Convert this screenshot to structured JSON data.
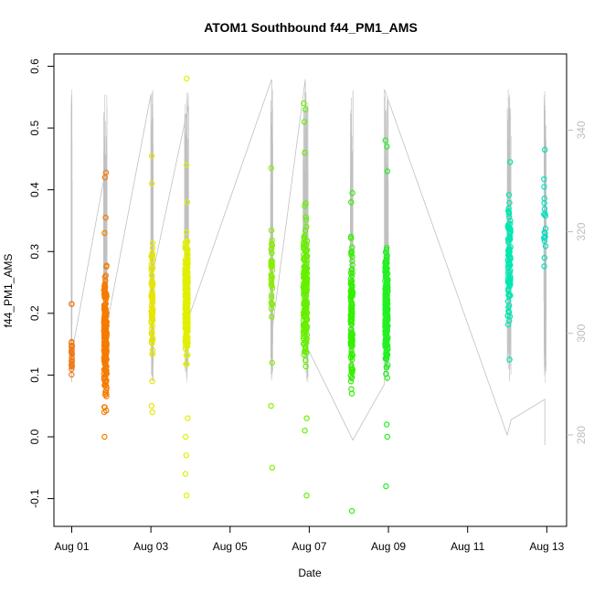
{
  "chart_data": {
    "type": "scatter",
    "title": "ATOM1 Southbound f44_PM1_AMS",
    "xlabel": "Date",
    "ylabel": "f44_PM1_AMS",
    "x_ticks": [
      {
        "day": 1,
        "label": "Aug 01"
      },
      {
        "day": 3,
        "label": "Aug 03"
      },
      {
        "day": 5,
        "label": "Aug 05"
      },
      {
        "day": 7,
        "label": "Aug 07"
      },
      {
        "day": 9,
        "label": "Aug 09"
      },
      {
        "day": 11,
        "label": "Aug 11"
      },
      {
        "day": 13,
        "label": "Aug 13"
      }
    ],
    "xlim": [
      0.55,
      13.5
    ],
    "y_ticks": [
      -0.1,
      0.0,
      0.1,
      0.2,
      0.3,
      0.4,
      0.5,
      0.6
    ],
    "y_tick_labels": [
      "-0.1",
      "0.0",
      "0.1",
      "0.2",
      "0.3",
      "0.4",
      "0.5",
      "0.6"
    ],
    "ylim": [
      -0.145,
      0.62
    ],
    "y2_ticks": [
      280,
      300,
      320,
      340
    ],
    "y2_tick_labels": [
      "280",
      "300",
      "320",
      "340"
    ],
    "y2lim": [
      262,
      355
    ],
    "grid": false,
    "clusters": [
      {
        "center_day": 1.0,
        "spread": 0.015,
        "color": "#f07a1a",
        "n": 30,
        "range": [
          0.09,
          0.17
        ],
        "outliers": [
          0.215,
          0.215
        ]
      },
      {
        "center_day": 1.85,
        "spread": 0.07,
        "color": "#f57b00",
        "n": 220,
        "range": [
          0.03,
          0.3
        ],
        "outliers": [
          0.33,
          0.355,
          0.428,
          0.42,
          0.0,
          0.04
        ]
      },
      {
        "center_day": 3.03,
        "spread": 0.04,
        "color": "#e6e600",
        "n": 70,
        "range": [
          0.08,
          0.36
        ],
        "outliers": [
          0.455,
          0.41,
          0.05,
          0.04,
          0.09
        ]
      },
      {
        "center_day": 3.9,
        "spread": 0.07,
        "color": "#e0f000",
        "n": 230,
        "range": [
          0.08,
          0.35
        ],
        "outliers": [
          0.58,
          0.44,
          0.38,
          -0.06,
          -0.095,
          -0.03,
          0.0,
          0.03
        ]
      },
      {
        "center_day": 6.05,
        "spread": 0.04,
        "color": "#88ee00",
        "n": 35,
        "range": [
          0.15,
          0.37
        ],
        "outliers": [
          0.435,
          0.05,
          -0.05,
          0.12
        ]
      },
      {
        "center_day": 6.9,
        "spread": 0.1,
        "color": "#66f000",
        "n": 170,
        "range": [
          0.06,
          0.4
        ],
        "outliers": [
          0.54,
          0.53,
          0.51,
          0.46,
          -0.095,
          0.01,
          0.03
        ]
      },
      {
        "center_day": 8.07,
        "spread": 0.05,
        "color": "#33f000",
        "n": 130,
        "range": [
          0.05,
          0.35
        ],
        "outliers": [
          0.395,
          0.38,
          -0.12,
          0.07
        ]
      },
      {
        "center_day": 8.95,
        "spread": 0.07,
        "color": "#22f022",
        "n": 200,
        "range": [
          0.05,
          0.36
        ],
        "outliers": [
          0.48,
          0.47,
          0.43,
          -0.08,
          0.0,
          0.02
        ]
      },
      {
        "center_day": 12.05,
        "spread": 0.07,
        "color": "#00e8b0",
        "n": 90,
        "range": [
          0.15,
          0.42
        ],
        "outliers": [
          0.445,
          0.125
        ]
      },
      {
        "center_day": 12.95,
        "spread": 0.05,
        "color": "#00e0c0",
        "n": 18,
        "range": [
          0.2,
          0.47
        ],
        "outliers": [
          0.465
        ]
      }
    ],
    "secondary_series": {
      "name": "",
      "color": "#c0c0c0",
      "points": [
        {
          "day": 1.0,
          "v": 332
        },
        {
          "day": 1.0,
          "v": 296
        },
        {
          "day": 1.85,
          "v": 332
        },
        {
          "day": 1.85,
          "v": 300
        },
        {
          "day": 3.0,
          "v": 347
        },
        {
          "day": 3.0,
          "v": 310
        },
        {
          "day": 3.95,
          "v": 345
        },
        {
          "day": 3.95,
          "v": 303
        },
        {
          "day": 6.05,
          "v": 350
        },
        {
          "day": 6.05,
          "v": 300
        },
        {
          "day": 6.9,
          "v": 350
        },
        {
          "day": 6.9,
          "v": 298
        },
        {
          "day": 8.1,
          "v": 279
        },
        {
          "day": 8.9,
          "v": 290
        },
        {
          "day": 8.9,
          "v": 348
        },
        {
          "day": 12.0,
          "v": 280
        },
        {
          "day": 12.1,
          "v": 283
        },
        {
          "day": 12.95,
          "v": 287
        },
        {
          "day": 12.95,
          "v": 278
        }
      ]
    }
  }
}
